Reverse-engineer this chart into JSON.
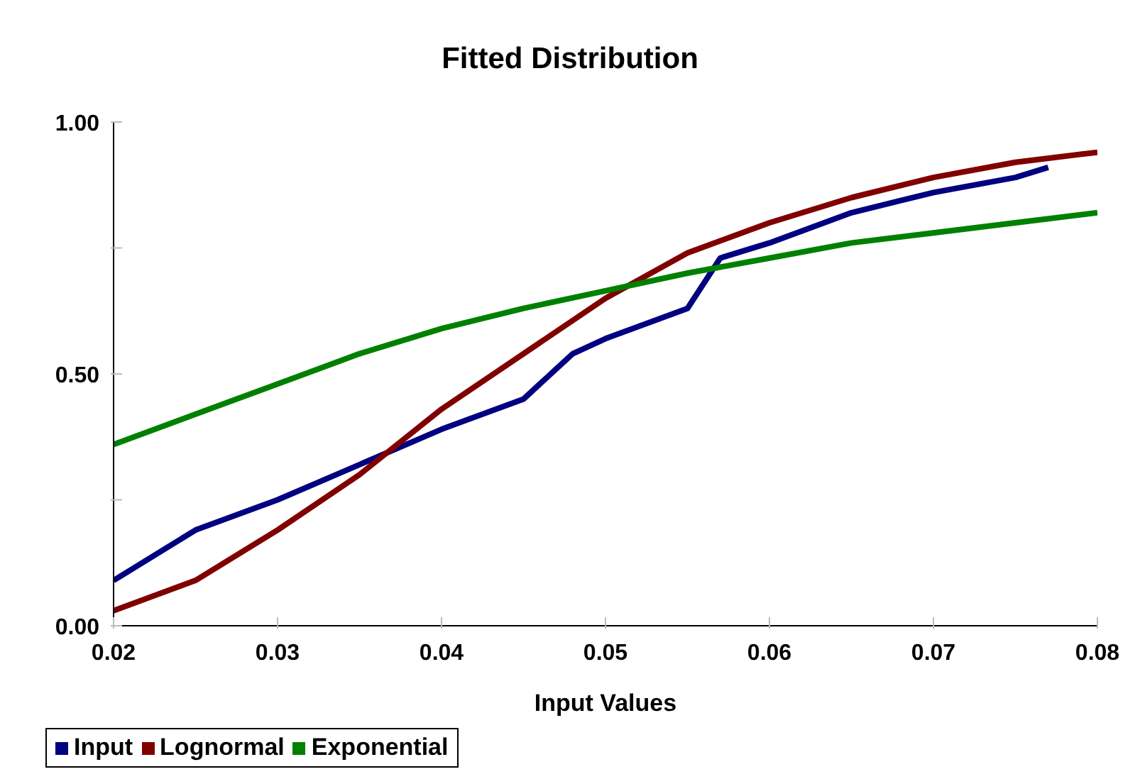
{
  "chart_data": {
    "type": "line",
    "title": "Fitted Distribution",
    "xlabel": "Input Values",
    "xlim": [
      0.02,
      0.08
    ],
    "xticks": [
      0.02,
      0.03,
      0.04,
      0.05,
      0.06,
      0.07,
      0.08
    ],
    "ylim": [
      0,
      1
    ],
    "yticks": [
      {
        "value": 0,
        "label": "0.00"
      },
      {
        "value": 0.25,
        "label": null
      },
      {
        "value": 0.5,
        "label": "0.50"
      },
      {
        "value": 0.75,
        "label": null
      },
      {
        "value": 1,
        "label": "1.00"
      }
    ],
    "grid": false,
    "legend": "bottom left",
    "marker": "none",
    "line_style": "solid",
    "series": [
      {
        "name": "Input",
        "color": "#000080",
        "x": [
          0.02,
          0.025,
          0.03,
          0.035,
          0.04,
          0.045,
          0.048,
          0.05,
          0.055,
          0.057,
          0.06,
          0.065,
          0.07,
          0.075,
          0.077
        ],
        "values": [
          0.09,
          0.19,
          0.25,
          0.32,
          0.39,
          0.45,
          0.54,
          0.57,
          0.63,
          0.73,
          0.76,
          0.82,
          0.86,
          0.89,
          0.91
        ]
      },
      {
        "name": "Lognormal",
        "color": "#800000",
        "x": [
          0.02,
          0.025,
          0.03,
          0.035,
          0.04,
          0.045,
          0.05,
          0.055,
          0.06,
          0.065,
          0.07,
          0.075,
          0.08
        ],
        "values": [
          0.03,
          0.09,
          0.19,
          0.3,
          0.43,
          0.54,
          0.65,
          0.74,
          0.8,
          0.85,
          0.89,
          0.92,
          0.94
        ]
      },
      {
        "name": "Exponential",
        "color": "#008000",
        "x": [
          0.02,
          0.025,
          0.03,
          0.035,
          0.04,
          0.045,
          0.05,
          0.055,
          0.06,
          0.065,
          0.07,
          0.075,
          0.08
        ],
        "values": [
          0.36,
          0.42,
          0.48,
          0.54,
          0.59,
          0.63,
          0.665,
          0.7,
          0.73,
          0.76,
          0.78,
          0.8,
          0.82
        ]
      }
    ]
  }
}
